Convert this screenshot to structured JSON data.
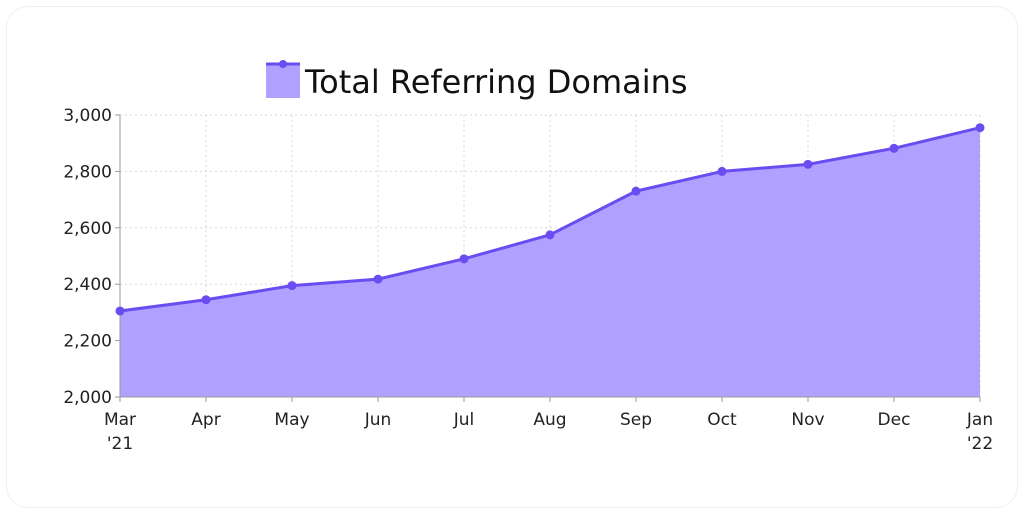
{
  "chart_data": {
    "type": "area",
    "title": "",
    "xlabel": "",
    "ylabel": "",
    "categories": [
      [
        "Mar",
        "'21"
      ],
      [
        "Apr"
      ],
      [
        "May"
      ],
      [
        "Jun"
      ],
      [
        "Jul"
      ],
      [
        "Aug"
      ],
      [
        "Sep"
      ],
      [
        "Oct"
      ],
      [
        "Nov"
      ],
      [
        "Dec"
      ],
      [
        "Jan",
        "'22"
      ]
    ],
    "series": [
      {
        "name": "Total Referring Domains",
        "values": [
          2305,
          2345,
          2395,
          2418,
          2490,
          2575,
          2730,
          2800,
          2825,
          2882,
          2955
        ]
      }
    ],
    "ylim": [
      2000,
      3000
    ],
    "yticks": [
      2000,
      2200,
      2400,
      2600,
      2800,
      3000
    ],
    "ytick_labels": [
      "2,000",
      "2,200",
      "2,400",
      "2,600",
      "2,800",
      "3,000"
    ],
    "grid": true,
    "legend_position": "top",
    "colors": {
      "line": "#6a4cf0",
      "fill": "#b0a0ff",
      "grid": "#d8d8d8",
      "axis": "#9a9a9a"
    }
  }
}
